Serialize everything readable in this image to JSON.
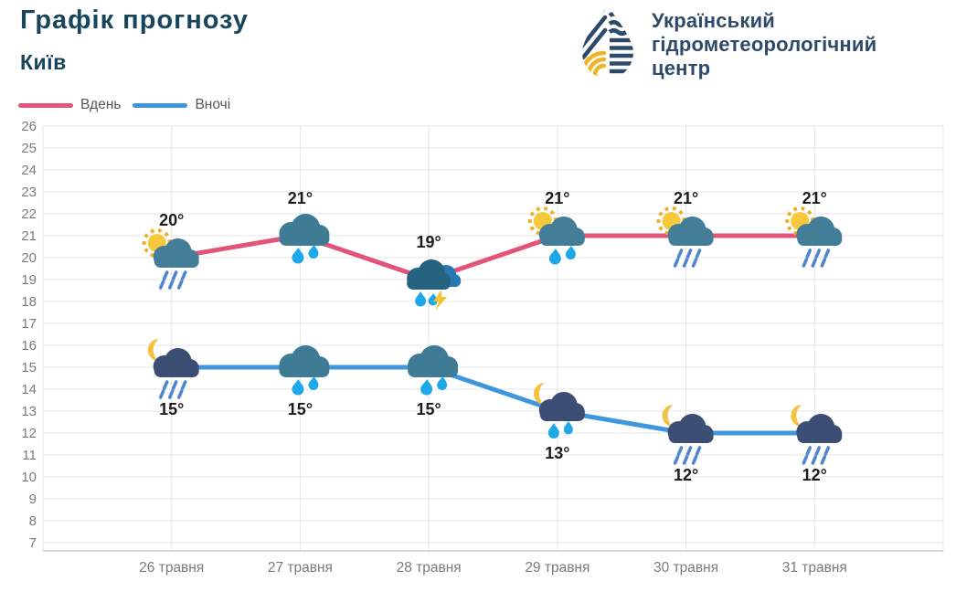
{
  "header": {
    "title": "Графік прогнозу",
    "city": "Київ",
    "org": {
      "line1": "Український",
      "line2": "гідрометеорологічний",
      "line3": "центр"
    }
  },
  "chart_data": {
    "type": "line",
    "categories": [
      "26 травня",
      "27 травня",
      "28 травня",
      "29 травня",
      "30 травня",
      "31 травня"
    ],
    "series": [
      {
        "name": "Вдень",
        "color": "#e25579",
        "values": [
          20,
          21,
          19,
          21,
          21,
          21
        ],
        "point_labels": [
          "20°",
          "21°",
          "19°",
          "21°",
          "21°",
          "21°"
        ],
        "label_position": "above",
        "icons": [
          "sun-cloud-rain",
          "cloud-heavy-rain",
          "thunderstorm",
          "sun-cloud-drops",
          "sun-cloud-rain",
          "sun-cloud-rain"
        ]
      },
      {
        "name": "Вночі",
        "color": "#3e96dc",
        "values": [
          15,
          15,
          15,
          13,
          12,
          12
        ],
        "point_labels": [
          "15°",
          "15°",
          "15°",
          "13°",
          "12°",
          "12°"
        ],
        "label_position": "below",
        "icons": [
          "moon-cloud-rain",
          "cloud-heavy-rain",
          "cloud-heavy-rain",
          "moon-cloud-drops",
          "moon-cloud-rain",
          "moon-cloud-rain"
        ]
      }
    ],
    "ylim": [
      7,
      26
    ],
    "ytick_step": 1,
    "grid": true,
    "grid_color": "#e4e4e4",
    "axis_color": "#cccccc",
    "legend_position": "top-left"
  }
}
